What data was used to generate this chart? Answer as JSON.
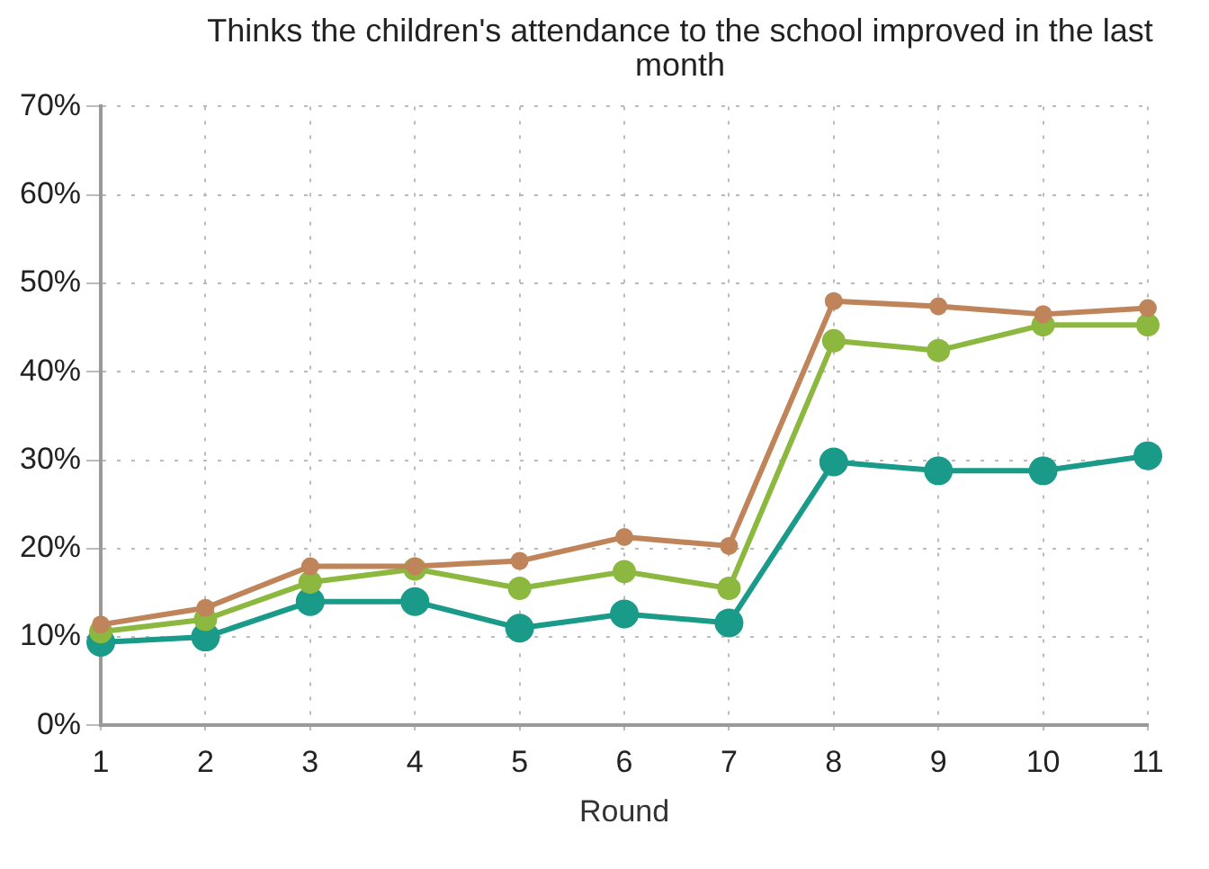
{
  "chart_data": {
    "type": "line",
    "title": "Thinks the children's attendance to the school improved in the last month",
    "xlabel": "Round",
    "categories": [
      "1",
      "2",
      "3",
      "4",
      "5",
      "6",
      "7",
      "8",
      "9",
      "10",
      "11"
    ],
    "series": [
      {
        "color": "#c0845a",
        "values": [
          11.4,
          13.3,
          18,
          18,
          18.6,
          21.3,
          20.3,
          48,
          47.4,
          46.5,
          47.2
        ]
      },
      {
        "color": "#8cb840",
        "values": [
          10.6,
          12,
          16.2,
          17.7,
          15.5,
          17.4,
          15.5,
          43.5,
          42.4,
          45.3,
          45.3
        ]
      },
      {
        "color": "#1a9a88",
        "values": [
          9.4,
          10,
          14,
          14,
          11,
          12.6,
          11.6,
          29.8,
          28.8,
          28.8,
          30.5
        ]
      }
    ],
    "ylim": [
      0,
      70
    ],
    "yticks": [
      {
        "value": 0,
        "label": "0%"
      },
      {
        "value": 10,
        "label": "10%"
      },
      {
        "value": 20,
        "label": "20%"
      },
      {
        "value": 30,
        "label": "30%"
      },
      {
        "value": 40,
        "label": "40%"
      },
      {
        "value": 50,
        "label": "50%"
      },
      {
        "value": 60,
        "label": "60%"
      },
      {
        "value": 70,
        "label": "70%"
      }
    ],
    "grid": true,
    "legend": false,
    "marker": "circle",
    "line_style": "solid"
  }
}
